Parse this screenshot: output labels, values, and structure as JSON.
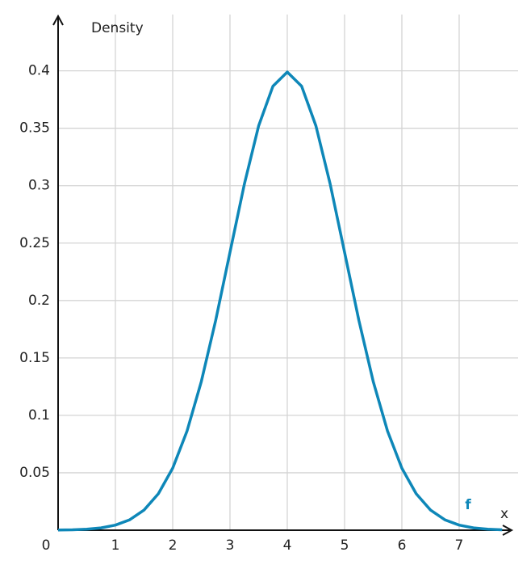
{
  "chart_data": {
    "type": "line",
    "y_label": "Density",
    "x_label": "x",
    "x": [
      0,
      0.25,
      0.5,
      0.75,
      1,
      1.25,
      1.5,
      1.75,
      2,
      2.25,
      2.5,
      2.75,
      3,
      3.25,
      3.5,
      3.75,
      4,
      4.25,
      4.5,
      4.75,
      5,
      5.25,
      5.5,
      5.75,
      6,
      6.25,
      6.5,
      6.75,
      7,
      7.25,
      7.5,
      7.75
    ],
    "series": [
      {
        "name": "f",
        "color": "#0e87b8",
        "values": [
          0.000134,
          0.000353,
          0.000873,
          0.002029,
          0.004432,
          0.009094,
          0.017528,
          0.03174,
          0.053991,
          0.086277,
          0.129518,
          0.182649,
          0.241971,
          0.301137,
          0.352065,
          0.386668,
          0.398942,
          0.386668,
          0.352065,
          0.301137,
          0.241971,
          0.182649,
          0.129518,
          0.086277,
          0.053991,
          0.03174,
          0.017528,
          0.009094,
          0.004432,
          0.002029,
          0.000873,
          0.000353
        ]
      }
    ],
    "xlim": [
      0,
      7.93
    ],
    "ylim": [
      0,
      0.449
    ],
    "xticks": [
      0,
      1,
      2,
      3,
      4,
      5,
      6,
      7
    ],
    "yticks": [
      0.05,
      0.1,
      0.15,
      0.2,
      0.25,
      0.3,
      0.35,
      0.4
    ],
    "grid": true
  }
}
